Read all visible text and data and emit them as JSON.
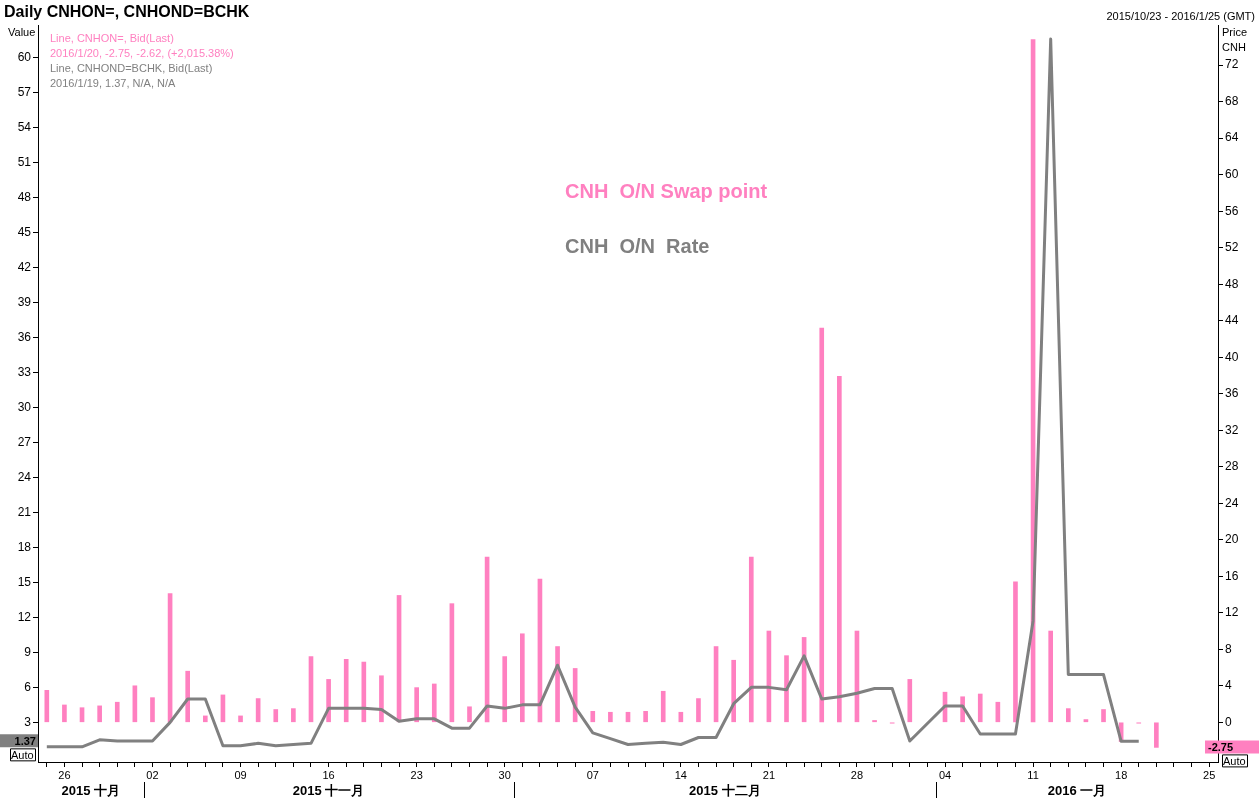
{
  "chart_data": {
    "type": "bar",
    "title": "Daily CNHON=, CNHOND=BCHK",
    "subtitle": "2015/10/23 - 2016/1/25 (GMT)",
    "ylabel": "Value",
    "y2label": "Price CNH",
    "categories": [
      null,
      "26",
      null,
      null,
      null,
      null,
      "02",
      null,
      null,
      null,
      null,
      "09",
      null,
      null,
      null,
      null,
      "16",
      null,
      null,
      null,
      null,
      "23",
      null,
      null,
      null,
      null,
      "30",
      null,
      null,
      null,
      null,
      "07",
      null,
      null,
      null,
      null,
      "14",
      null,
      null,
      null,
      null,
      "21",
      null,
      null,
      null,
      null,
      "28",
      null,
      null,
      null,
      null,
      "04",
      null,
      null,
      null,
      null,
      "11",
      null,
      null,
      null,
      null,
      "18",
      null,
      null,
      null,
      null,
      "25"
    ],
    "series": [
      {
        "name": "CNH  O/N Swap point",
        "axis": "y2",
        "color": "#ff80c0",
        "values": [
          3.5,
          1.9,
          1.6,
          1.8,
          2.2,
          4.0,
          2.7,
          14.1,
          5.6,
          0.7,
          3.0,
          0.7,
          2.6,
          1.4,
          1.5,
          7.2,
          4.7,
          6.9,
          6.6,
          5.1,
          13.9,
          3.8,
          4.2,
          13.0,
          1.7,
          18.1,
          7.2,
          9.7,
          15.7,
          8.3,
          5.9,
          1.2,
          1.1,
          1.1,
          1.2,
          3.4,
          1.1,
          2.6,
          8.3,
          6.8,
          18.1,
          10.0,
          7.3,
          9.3,
          43.2,
          37.9,
          10.0,
          0.2,
          -0.1,
          4.7,
          null,
          3.3,
          2.8,
          3.1,
          2.2,
          15.4,
          74.8,
          10.0,
          1.5,
          0.3,
          1.4,
          -2.1,
          -0.1,
          -2.75,
          null,
          null,
          null
        ]
      },
      {
        "name": "CNH  O/N  Rate",
        "type": "line",
        "axis": "y",
        "color": "#808080",
        "values": [
          0.9,
          0.9,
          0.9,
          1.5,
          1.4,
          1.4,
          1.4,
          3.0,
          5.0,
          5.0,
          1.0,
          1.0,
          1.2,
          1.0,
          1.1,
          1.2,
          4.2,
          4.2,
          4.2,
          4.1,
          3.1,
          3.3,
          3.3,
          2.5,
          2.5,
          4.4,
          4.2,
          4.5,
          4.5,
          7.9,
          4.3,
          2.1,
          1.6,
          1.1,
          1.2,
          1.3,
          1.1,
          1.7,
          1.7,
          4.6,
          6.0,
          6.0,
          5.8,
          8.7,
          5.0,
          5.2,
          5.5,
          5.9,
          5.9,
          1.4,
          null,
          4.4,
          4.4,
          2.0,
          2.0,
          2.0,
          11.7,
          61.6,
          7.1,
          7.1,
          7.1,
          1.37,
          1.37,
          null,
          null,
          null,
          null
        ]
      }
    ],
    "ylim": [
      -0.4,
      62.8
    ],
    "yticks": [
      3,
      6,
      9,
      12,
      15,
      18,
      21,
      24,
      27,
      30,
      33,
      36,
      39,
      42,
      45,
      48,
      51,
      54,
      57,
      60
    ],
    "y2lim": [
      -4.35,
      76.4
    ],
    "y2ticks": [
      0,
      4,
      8,
      12,
      16,
      20,
      24,
      28,
      32,
      36,
      40,
      44,
      48,
      52,
      56,
      60,
      64,
      68,
      72
    ],
    "grid": false,
    "legend": "top",
    "marker": "none",
    "line_style": "solid",
    "annotations": [
      "Line, CNHON=, Bid(Last)",
      "2016/1/20, -2.75, -2.62, (+2,015.38%)",
      "Line, CNHOND=BCHK, Bid(Last)",
      "2016/1/19, 1.37, N/A, N/A",
      "2015 十月",
      "2015 十一月",
      "2015 十二月",
      "2016 一月",
      "1.37",
      "-2.75",
      "Auto",
      "Auto"
    ]
  }
}
